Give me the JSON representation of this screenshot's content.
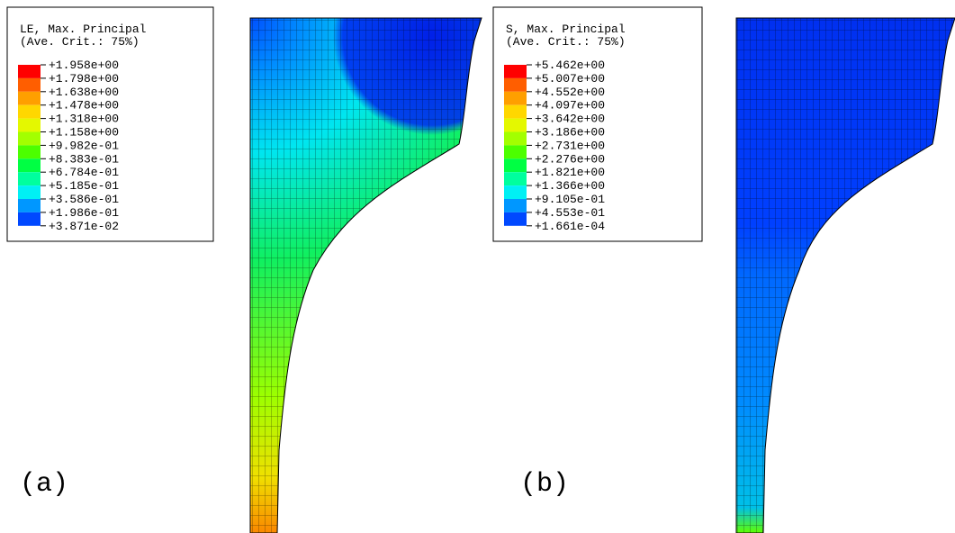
{
  "panels": [
    {
      "label": "(a)",
      "legend": {
        "title": "LE, Max. Principal",
        "subtitle": "(Ave. Crit.: 75%)",
        "labels": [
          "+1.958e+00",
          "+1.798e+00",
          "+1.638e+00",
          "+1.478e+00",
          "+1.318e+00",
          "+1.158e+00",
          "+9.982e-01",
          "+8.383e-01",
          "+6.784e-01",
          "+5.185e-01",
          "+3.586e-01",
          "+1.986e-01",
          "+3.871e-02"
        ]
      }
    },
    {
      "label": "(b)",
      "legend": {
        "title": "S, Max. Principal",
        "subtitle": "(Ave. Crit.: 75%)",
        "labels": [
          "+5.462e+00",
          "+5.007e+00",
          "+4.552e+00",
          "+4.097e+00",
          "+3.642e+00",
          "+3.186e+00",
          "+2.731e+00",
          "+2.276e+00",
          "+1.821e+00",
          "+1.366e+00",
          "+9.105e-01",
          "+4.553e-01",
          "+1.661e-04"
        ]
      }
    }
  ]
}
